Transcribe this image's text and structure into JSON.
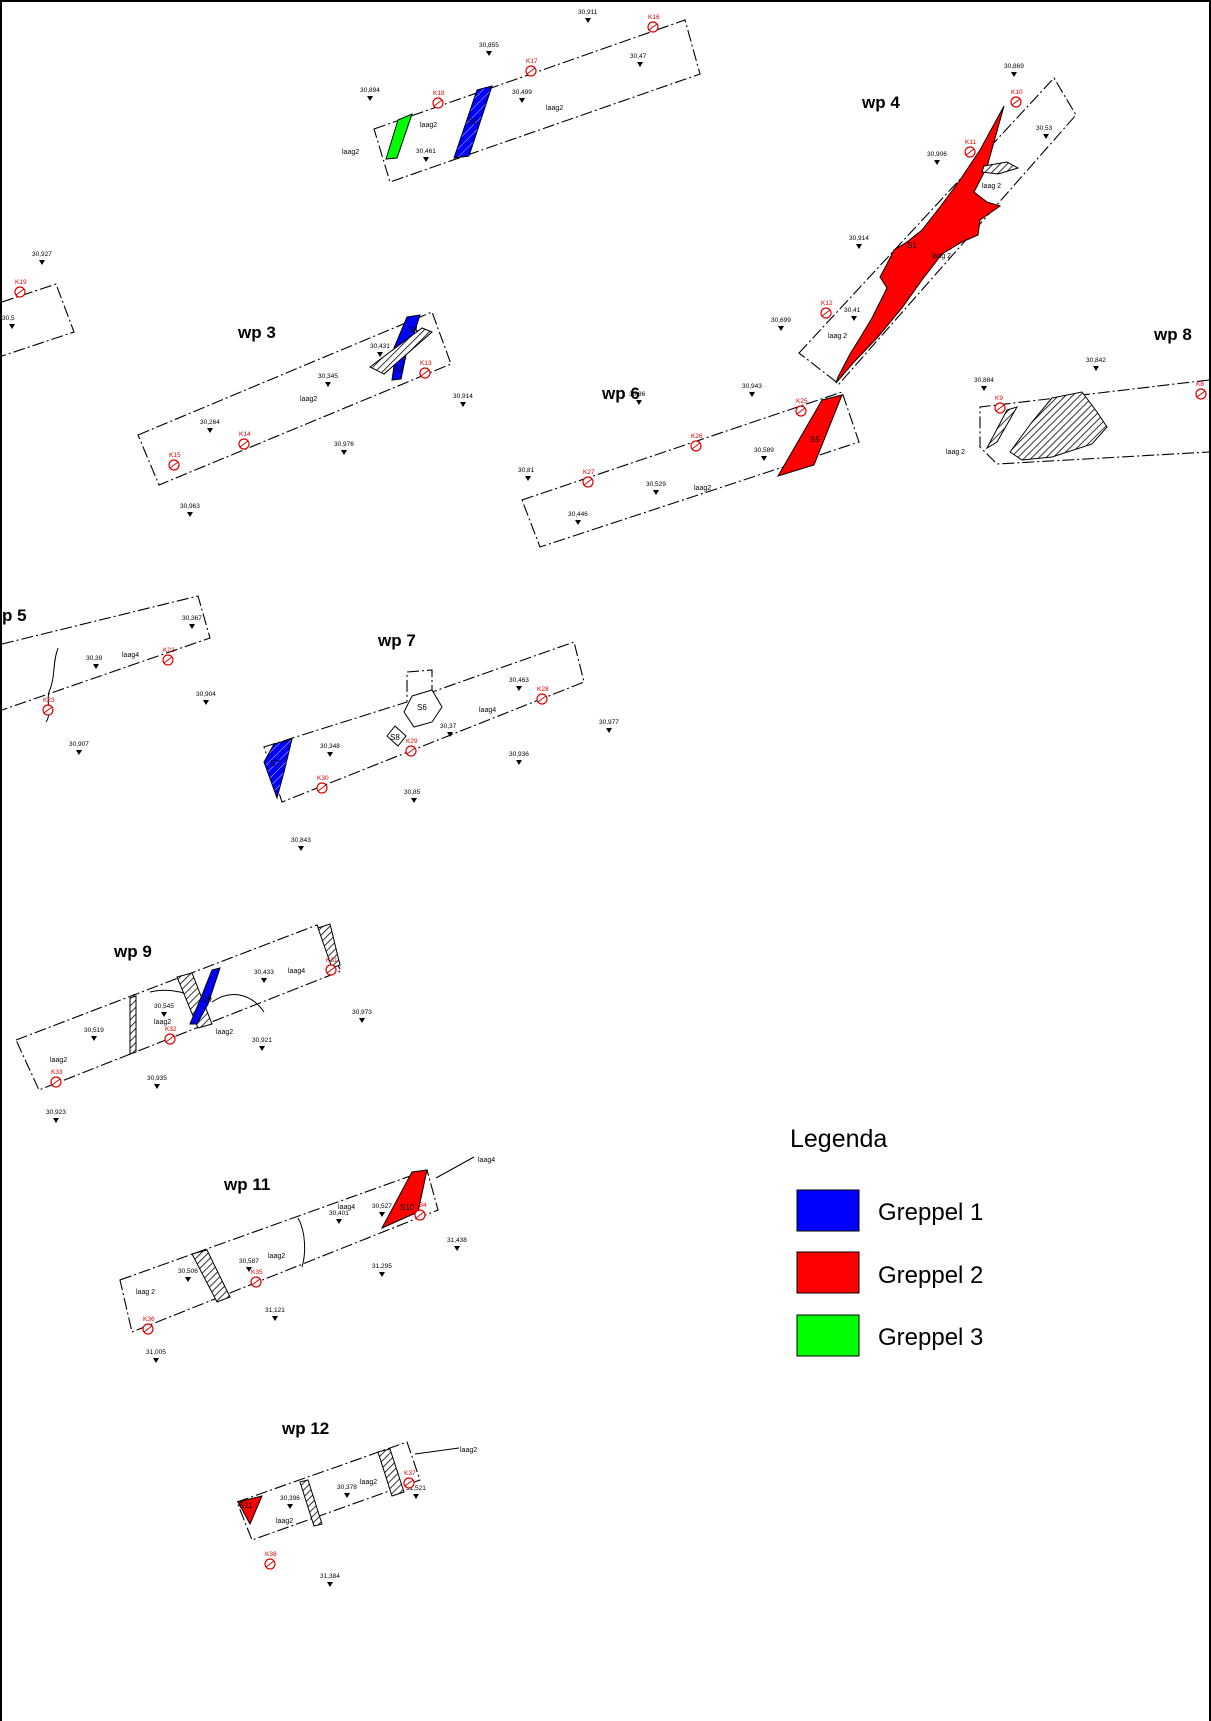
{
  "map": {
    "colors": {
      "greppel1": "#0000ff",
      "greppel2": "#ff0000",
      "greppel3": "#00ff00",
      "kmarker": "#e00000"
    },
    "trenches": [
      {
        "name": "wp 3"
      },
      {
        "name": "wp 4"
      },
      {
        "name": "wp 5"
      },
      {
        "name": "wp 6"
      },
      {
        "name": "wp 7"
      },
      {
        "name": "wp 8"
      },
      {
        "name": "wp 9"
      },
      {
        "name": "wp 11"
      },
      {
        "name": "wp 12"
      }
    ],
    "wp5_visible": "p 5",
    "elevations": [
      "30,911",
      "30,855",
      "30,47",
      "30,894",
      "30,499",
      "30,461",
      "30,869",
      "30,53",
      "30,906",
      "30,927",
      "30,914",
      "30,699",
      "30,41",
      "30,431",
      "30,345",
      "30,914",
      "30,264",
      "30,976",
      "30,963",
      "30,943",
      "30,86",
      "30,589",
      "30,81",
      "30,529",
      "30,446",
      "30,884",
      "30,842",
      "30,367",
      "30,39",
      "30,904",
      "30,907",
      "30,463",
      "30,977",
      "30,37",
      "30,348",
      "30,936",
      "30,85",
      "30,843",
      "30,433",
      "30,545",
      "30,973",
      "30,519",
      "30,921",
      "30,935",
      "30,923",
      "30,527",
      "30,401",
      "31,438",
      "30,587",
      "30,506",
      "31,295",
      "31,121",
      "31,005",
      "30,396",
      "30,378",
      "31,521",
      "31,384",
      "30,5"
    ],
    "layers": [
      "laag2",
      "laag 2",
      "laag4"
    ],
    "k_codes": [
      "K15",
      "K16",
      "K17",
      "K18",
      "K19",
      "K10",
      "K11",
      "K12",
      "K13",
      "K14",
      "K9",
      "K8",
      "K25",
      "K26",
      "K27",
      "K22",
      "K23",
      "K28",
      "K29",
      "K30",
      "K31",
      "K32",
      "K33",
      "K34",
      "K35",
      "K36",
      "K37",
      "K38"
    ],
    "features": [
      "S1",
      "S2",
      "S3",
      "S4",
      "S5",
      "S6",
      "S7",
      "S8",
      "S9",
      "S10",
      "S11"
    ]
  },
  "legend": {
    "title": "Legenda",
    "items": [
      {
        "label": "Greppel 1",
        "color": "#0000ff"
      },
      {
        "label": "Greppel 2",
        "color": "#ff0000"
      },
      {
        "label": "Greppel 3",
        "color": "#00ff00"
      }
    ]
  }
}
